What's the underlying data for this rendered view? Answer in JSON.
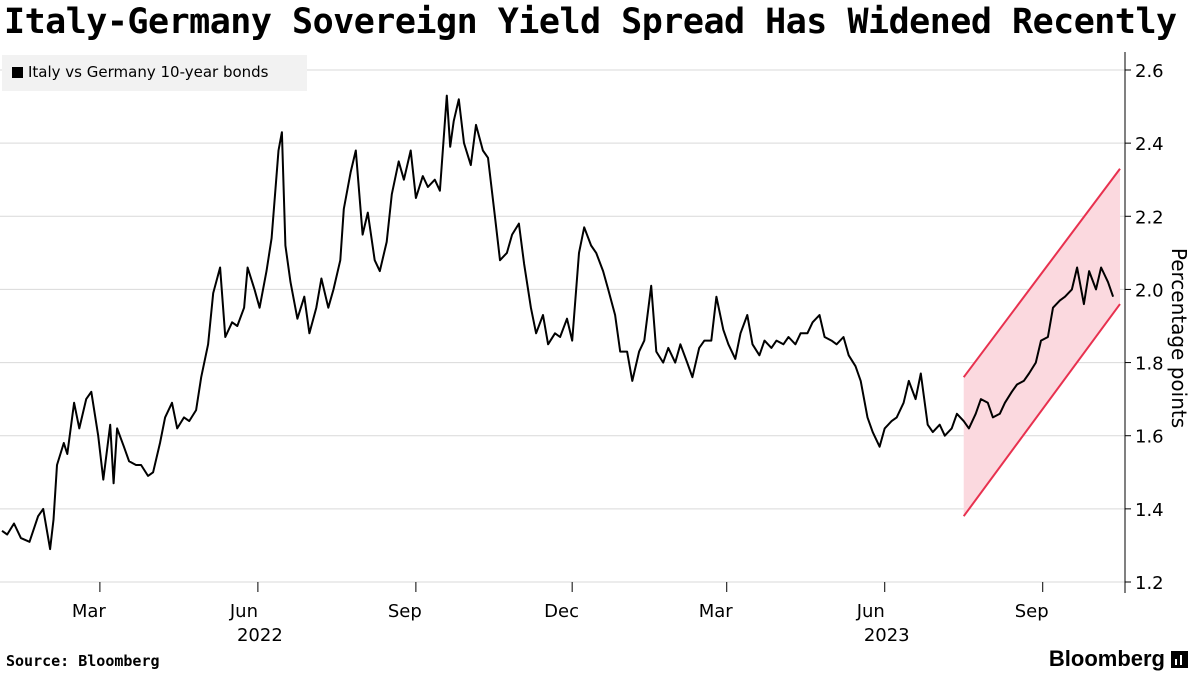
{
  "chart_data": {
    "type": "line",
    "title": "Italy-Germany Sovereign Yield Spread Has Widened Recently",
    "ylabel": "Percentage points",
    "xlabel": "",
    "ylim": [
      1.2,
      2.6
    ],
    "yticks": [
      "1.2",
      "1.4",
      "1.6",
      "1.8",
      "2.0",
      "2.2",
      "2.4",
      "2.6"
    ],
    "xticks": [
      {
        "date": "2022-03-01",
        "label": "Mar"
      },
      {
        "date": "2022-06-01",
        "label": "Jun"
      },
      {
        "date": "2022-09-01",
        "label": "Sep"
      },
      {
        "date": "2022-12-01",
        "label": "Dec"
      },
      {
        "date": "2023-03-01",
        "label": "Mar"
      },
      {
        "date": "2023-06-01",
        "label": "Jun"
      },
      {
        "date": "2023-09-01",
        "label": "Sep"
      }
    ],
    "year_labels": [
      {
        "date": "2022-06-01",
        "label": "2022"
      },
      {
        "date": "2023-06-01",
        "label": "2023"
      }
    ],
    "xlim": [
      "2022-01-03",
      "2023-10-16"
    ],
    "grid": true,
    "legend_position": "top-left",
    "series": [
      {
        "name": "Italy vs Germany 10-year bonds",
        "color": "#000000",
        "points": [
          [
            "2022-01-03",
            1.34
          ],
          [
            "2022-01-06",
            1.33
          ],
          [
            "2022-01-10",
            1.36
          ],
          [
            "2022-01-14",
            1.32
          ],
          [
            "2022-01-19",
            1.31
          ],
          [
            "2022-01-24",
            1.38
          ],
          [
            "2022-01-27",
            1.4
          ],
          [
            "2022-01-31",
            1.29
          ],
          [
            "2022-02-02",
            1.37
          ],
          [
            "2022-02-04",
            1.52
          ],
          [
            "2022-02-08",
            1.58
          ],
          [
            "2022-02-10",
            1.55
          ],
          [
            "2022-02-14",
            1.69
          ],
          [
            "2022-02-17",
            1.62
          ],
          [
            "2022-02-21",
            1.7
          ],
          [
            "2022-02-24",
            1.72
          ],
          [
            "2022-02-28",
            1.6
          ],
          [
            "2022-03-03",
            1.48
          ],
          [
            "2022-03-07",
            1.63
          ],
          [
            "2022-03-09",
            1.47
          ],
          [
            "2022-03-11",
            1.62
          ],
          [
            "2022-03-15",
            1.57
          ],
          [
            "2022-03-18",
            1.53
          ],
          [
            "2022-03-22",
            1.52
          ],
          [
            "2022-03-25",
            1.52
          ],
          [
            "2022-03-29",
            1.49
          ],
          [
            "2022-04-01",
            1.5
          ],
          [
            "2022-04-05",
            1.58
          ],
          [
            "2022-04-08",
            1.65
          ],
          [
            "2022-04-12",
            1.69
          ],
          [
            "2022-04-15",
            1.62
          ],
          [
            "2022-04-19",
            1.65
          ],
          [
            "2022-04-22",
            1.64
          ],
          [
            "2022-04-26",
            1.67
          ],
          [
            "2022-04-29",
            1.76
          ],
          [
            "2022-05-03",
            1.85
          ],
          [
            "2022-05-06",
            1.99
          ],
          [
            "2022-05-10",
            2.06
          ],
          [
            "2022-05-13",
            1.87
          ],
          [
            "2022-05-17",
            1.91
          ],
          [
            "2022-05-20",
            1.9
          ],
          [
            "2022-05-24",
            1.95
          ],
          [
            "2022-05-26",
            2.06
          ],
          [
            "2022-05-30",
            2.0
          ],
          [
            "2022-06-02",
            1.95
          ],
          [
            "2022-06-06",
            2.05
          ],
          [
            "2022-06-09",
            2.14
          ],
          [
            "2022-06-13",
            2.38
          ],
          [
            "2022-06-15",
            2.43
          ],
          [
            "2022-06-17",
            2.12
          ],
          [
            "2022-06-20",
            2.02
          ],
          [
            "2022-06-24",
            1.92
          ],
          [
            "2022-06-28",
            1.98
          ],
          [
            "2022-07-01",
            1.88
          ],
          [
            "2022-07-05",
            1.95
          ],
          [
            "2022-07-08",
            2.03
          ],
          [
            "2022-07-12",
            1.95
          ],
          [
            "2022-07-15",
            2.0
          ],
          [
            "2022-07-19",
            2.08
          ],
          [
            "2022-07-21",
            2.22
          ],
          [
            "2022-07-25",
            2.32
          ],
          [
            "2022-07-28",
            2.38
          ],
          [
            "2022-08-01",
            2.15
          ],
          [
            "2022-08-04",
            2.21
          ],
          [
            "2022-08-08",
            2.08
          ],
          [
            "2022-08-11",
            2.05
          ],
          [
            "2022-08-15",
            2.13
          ],
          [
            "2022-08-18",
            2.26
          ],
          [
            "2022-08-22",
            2.35
          ],
          [
            "2022-08-25",
            2.3
          ],
          [
            "2022-08-29",
            2.38
          ],
          [
            "2022-09-01",
            2.25
          ],
          [
            "2022-09-05",
            2.31
          ],
          [
            "2022-09-08",
            2.28
          ],
          [
            "2022-09-12",
            2.3
          ],
          [
            "2022-09-15",
            2.27
          ],
          [
            "2022-09-19",
            2.53
          ],
          [
            "2022-09-21",
            2.39
          ],
          [
            "2022-09-23",
            2.46
          ],
          [
            "2022-09-26",
            2.52
          ],
          [
            "2022-09-29",
            2.4
          ],
          [
            "2022-10-03",
            2.34
          ],
          [
            "2022-10-06",
            2.45
          ],
          [
            "2022-10-10",
            2.38
          ],
          [
            "2022-10-13",
            2.36
          ],
          [
            "2022-10-17",
            2.2
          ],
          [
            "2022-10-20",
            2.08
          ],
          [
            "2022-10-24",
            2.1
          ],
          [
            "2022-10-27",
            2.15
          ],
          [
            "2022-10-31",
            2.18
          ],
          [
            "2022-11-03",
            2.07
          ],
          [
            "2022-11-07",
            1.95
          ],
          [
            "2022-11-10",
            1.88
          ],
          [
            "2022-11-14",
            1.93
          ],
          [
            "2022-11-17",
            1.85
          ],
          [
            "2022-11-21",
            1.88
          ],
          [
            "2022-11-24",
            1.87
          ],
          [
            "2022-11-28",
            1.92
          ],
          [
            "2022-12-01",
            1.86
          ],
          [
            "2022-12-05",
            2.1
          ],
          [
            "2022-12-08",
            2.17
          ],
          [
            "2022-12-12",
            2.12
          ],
          [
            "2022-12-15",
            2.1
          ],
          [
            "2022-12-19",
            2.05
          ],
          [
            "2022-12-22",
            2.0
          ],
          [
            "2022-12-26",
            1.93
          ],
          [
            "2022-12-29",
            1.83
          ],
          [
            "2023-01-02",
            1.83
          ],
          [
            "2023-01-05",
            1.75
          ],
          [
            "2023-01-09",
            1.83
          ],
          [
            "2023-01-12",
            1.86
          ],
          [
            "2023-01-16",
            2.01
          ],
          [
            "2023-01-19",
            1.83
          ],
          [
            "2023-01-23",
            1.8
          ],
          [
            "2023-01-26",
            1.84
          ],
          [
            "2023-01-30",
            1.8
          ],
          [
            "2023-02-02",
            1.85
          ],
          [
            "2023-02-06",
            1.8
          ],
          [
            "2023-02-09",
            1.76
          ],
          [
            "2023-02-13",
            1.84
          ],
          [
            "2023-02-16",
            1.86
          ],
          [
            "2023-02-20",
            1.86
          ],
          [
            "2023-02-23",
            1.98
          ],
          [
            "2023-02-27",
            1.89
          ],
          [
            "2023-03-02",
            1.85
          ],
          [
            "2023-03-06",
            1.81
          ],
          [
            "2023-03-09",
            1.88
          ],
          [
            "2023-03-13",
            1.93
          ],
          [
            "2023-03-16",
            1.85
          ],
          [
            "2023-03-20",
            1.82
          ],
          [
            "2023-03-23",
            1.86
          ],
          [
            "2023-03-27",
            1.84
          ],
          [
            "2023-03-30",
            1.86
          ],
          [
            "2023-04-03",
            1.85
          ],
          [
            "2023-04-06",
            1.87
          ],
          [
            "2023-04-10",
            1.85
          ],
          [
            "2023-04-13",
            1.88
          ],
          [
            "2023-04-17",
            1.88
          ],
          [
            "2023-04-20",
            1.91
          ],
          [
            "2023-04-24",
            1.93
          ],
          [
            "2023-04-27",
            1.87
          ],
          [
            "2023-05-01",
            1.86
          ],
          [
            "2023-05-04",
            1.85
          ],
          [
            "2023-05-08",
            1.87
          ],
          [
            "2023-05-11",
            1.82
          ],
          [
            "2023-05-15",
            1.79
          ],
          [
            "2023-05-18",
            1.75
          ],
          [
            "2023-05-22",
            1.65
          ],
          [
            "2023-05-25",
            1.61
          ],
          [
            "2023-05-29",
            1.57
          ],
          [
            "2023-06-01",
            1.62
          ],
          [
            "2023-06-05",
            1.64
          ],
          [
            "2023-06-08",
            1.65
          ],
          [
            "2023-06-12",
            1.69
          ],
          [
            "2023-06-15",
            1.75
          ],
          [
            "2023-06-19",
            1.7
          ],
          [
            "2023-06-22",
            1.77
          ],
          [
            "2023-06-26",
            1.63
          ],
          [
            "2023-06-29",
            1.61
          ],
          [
            "2023-07-03",
            1.63
          ],
          [
            "2023-07-06",
            1.6
          ],
          [
            "2023-07-10",
            1.62
          ],
          [
            "2023-07-13",
            1.66
          ],
          [
            "2023-07-17",
            1.64
          ],
          [
            "2023-07-20",
            1.62
          ],
          [
            "2023-07-24",
            1.66
          ],
          [
            "2023-07-27",
            1.7
          ],
          [
            "2023-07-31",
            1.69
          ],
          [
            "2023-08-03",
            1.65
          ],
          [
            "2023-08-07",
            1.66
          ],
          [
            "2023-08-10",
            1.69
          ],
          [
            "2023-08-14",
            1.72
          ],
          [
            "2023-08-17",
            1.74
          ],
          [
            "2023-08-21",
            1.75
          ],
          [
            "2023-08-24",
            1.77
          ],
          [
            "2023-08-28",
            1.8
          ],
          [
            "2023-08-31",
            1.86
          ],
          [
            "2023-09-04",
            1.87
          ],
          [
            "2023-09-07",
            1.95
          ],
          [
            "2023-09-11",
            1.97
          ],
          [
            "2023-09-14",
            1.98
          ],
          [
            "2023-09-18",
            2.0
          ],
          [
            "2023-09-21",
            2.06
          ],
          [
            "2023-09-25",
            1.96
          ],
          [
            "2023-09-28",
            2.05
          ],
          [
            "2023-10-02",
            2.0
          ],
          [
            "2023-10-05",
            2.06
          ],
          [
            "2023-10-09",
            2.02
          ],
          [
            "2023-10-12",
            1.98
          ]
        ]
      }
    ],
    "annotations": [
      {
        "type": "channel",
        "color": "#e8314f",
        "fill": "#fbd9df",
        "upper": [
          [
            "2023-07-17",
            1.76
          ],
          [
            "2023-10-16",
            2.33
          ]
        ],
        "lower": [
          [
            "2023-07-17",
            1.38
          ],
          [
            "2023-10-16",
            1.96
          ]
        ]
      }
    ]
  },
  "legend": {
    "label": "Italy vs Germany 10-year bonds"
  },
  "footer": {
    "source": "Source: Bloomberg",
    "brand": "Bloomberg"
  }
}
